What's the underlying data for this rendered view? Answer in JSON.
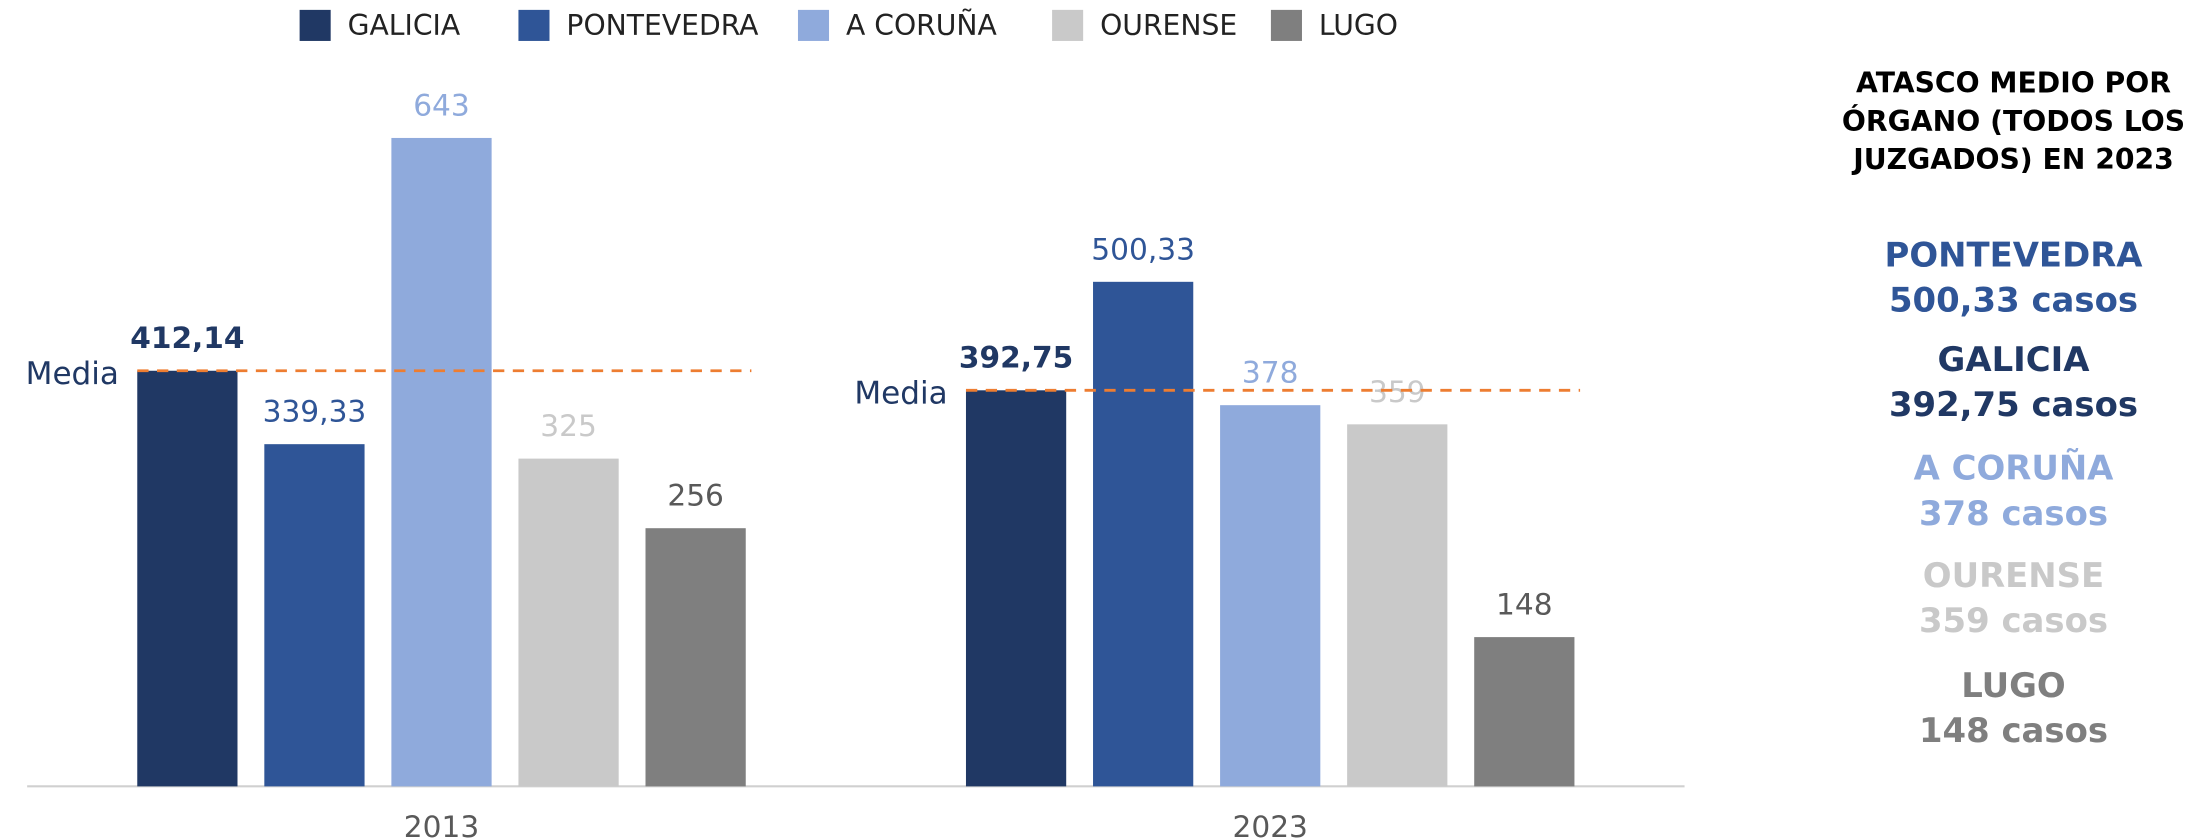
{
  "chart_data": {
    "type": "bar",
    "categories": [
      "2013",
      "2023"
    ],
    "series": [
      {
        "name": "GALICIA",
        "color": "#203864",
        "values": [
          412.14,
          392.75
        ],
        "value_labels": [
          "412,14",
          "392,75"
        ]
      },
      {
        "name": "PONTEVEDRA",
        "color": "#2f5597",
        "values": [
          339.33,
          500.33
        ],
        "value_labels": [
          "339,33",
          "500,33"
        ]
      },
      {
        "name": "A CORUÑA",
        "color": "#8faadc",
        "values": [
          643,
          378
        ]
      },
      {
        "name": "OURENSE",
        "color": "#c9c9c9",
        "values": [
          325,
          359
        ]
      },
      {
        "name": "LUGO",
        "color": "#7f7f7f",
        "values": [
          256,
          148
        ]
      }
    ],
    "ylim": [
      0,
      700
    ],
    "legend": "top",
    "reference_lines": [
      {
        "label": "Media",
        "color": "#ed7d31"
      },
      {
        "label": "Media",
        "color": "#ed7d31"
      }
    ]
  },
  "side_panel": {
    "title": [
      "ATASCO MEDIO POR",
      "ÓRGANO (TODOS LOS",
      "JUZGADOS) EN 2023"
    ],
    "entries": [
      {
        "name": "PONTEVEDRA",
        "text": "500,33 casos",
        "color": "#2f5597"
      },
      {
        "name": "GALICIA",
        "text": "392,75 casos",
        "color": "#203864"
      },
      {
        "name": "A CORUÑA",
        "text": "378 casos",
        "color": "#8faadc"
      },
      {
        "name": "OURENSE",
        "text": "359 casos",
        "color": "#c9c9c9"
      },
      {
        "name": "LUGO",
        "text": "148 casos",
        "color": "#7f7f7f"
      }
    ]
  }
}
